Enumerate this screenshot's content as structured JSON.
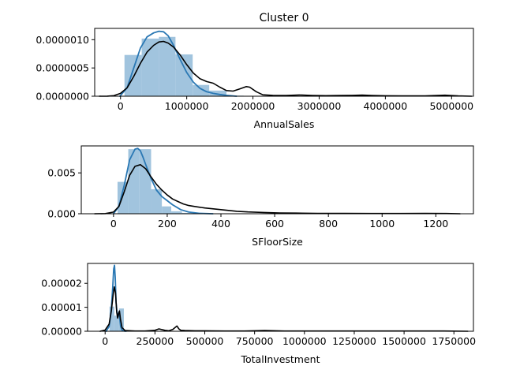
{
  "figure": {
    "title": "Cluster 0"
  },
  "chart_data": [
    {
      "type": "bar",
      "title": "Cluster 0",
      "xlabel": "AnnualSales",
      "ylabel": "",
      "xlim": [
        -390000,
        5330000
      ],
      "ylim": [
        0,
        1.2e-06
      ],
      "xticks": [
        0,
        1000000,
        2000000,
        3000000,
        4000000,
        5000000
      ],
      "xtick_labels": [
        "0",
        "1000000",
        "2000000",
        "3000000",
        "4000000",
        "5000000"
      ],
      "yticks": [
        0,
        5e-07,
        1e-06
      ],
      "ytick_labels": [
        "0.0000000",
        "0.0000005",
        "0.0000010"
      ],
      "histogram": {
        "edges": [
          60000,
          320000,
          580000,
          830000,
          1090000,
          1340000,
          1600000,
          1860000
        ],
        "values": [
          7.3e-07,
          1.02e-06,
          1.05e-06,
          7.4e-07,
          2e-07,
          1e-07,
          1e-08
        ]
      },
      "series": [
        {
          "kind": "blue_kde",
          "x": [
            -10000,
            100000,
            200000,
            300000,
            400000,
            500000,
            580000,
            650000,
            720000,
            800000,
            900000,
            1000000,
            1100000,
            1200000,
            1300000,
            1400000,
            1500000,
            1600000,
            1700000,
            1750000
          ],
          "y": [
            0,
            1.5e-07,
            5e-07,
            8.5e-07,
            1.05e-06,
            1.12e-06,
            1.15e-06,
            1.14e-06,
            1.07e-06,
            9e-07,
            6.5e-07,
            4.2e-07,
            2.5e-07,
            1.4e-07,
            8e-08,
            5e-08,
            3e-08,
            1.5e-08,
            5e-09,
            0
          ]
        },
        {
          "kind": "black_kde",
          "x": [
            -320000,
            -200000,
            -100000,
            0,
            100000,
            200000,
            300000,
            400000,
            500000,
            580000,
            650000,
            720000,
            800000,
            900000,
            1000000,
            1100000,
            1200000,
            1300000,
            1400000,
            1500000,
            1600000,
            1700000,
            1800000,
            1900000,
            1950000,
            2050000,
            2150000,
            2300000,
            2500000,
            2700000,
            2900000,
            3100000,
            3300000,
            3500000,
            3650000,
            3800000,
            4000000,
            4300000,
            4600000,
            4900000,
            5100000,
            5300000
          ],
          "y": [
            0,
            1e-09,
            1e-08,
            5e-08,
            1.5e-07,
            3.5e-07,
            5.8e-07,
            7.8e-07,
            9e-07,
            9.6e-07,
            9.7e-07,
            9.4e-07,
            8.7e-07,
            7.3e-07,
            5.6e-07,
            4.1e-07,
            3.1e-07,
            2.6e-07,
            2.3e-07,
            1.6e-07,
            1e-07,
            9e-08,
            1.3e-07,
            1.7e-07,
            1.6e-07,
            8e-08,
            2.5e-08,
            1.5e-08,
            1.2e-08,
            2.2e-08,
            1.4e-08,
            1e-08,
            1.2e-08,
            1.6e-08,
            2e-08,
            1.2e-08,
            8e-09,
            5e-09,
            5e-09,
            1.8e-08,
            6e-09,
            0
          ]
        }
      ]
    },
    {
      "type": "bar",
      "title": "",
      "xlabel": "SFloorSize",
      "ylabel": "",
      "xlim": [
        -120,
        1340
      ],
      "ylim": [
        0,
        0.0083
      ],
      "xticks": [
        0,
        200,
        400,
        600,
        800,
        1000,
        1200
      ],
      "xtick_labels": [
        "0",
        "200",
        "400",
        "600",
        "800",
        "1000",
        "1200"
      ],
      "yticks": [
        0,
        0.005
      ],
      "ytick_labels": [
        "0.000",
        "0.005"
      ],
      "histogram": {
        "edges": [
          15,
          55,
          95,
          140,
          180,
          215,
          255,
          295
        ],
        "values": [
          0.0039,
          0.0079,
          0.0079,
          0.003,
          0.0009,
          0.0003,
          0.0001
        ]
      },
      "series": [
        {
          "kind": "blue_kde",
          "x": [
            0,
            20,
            40,
            60,
            80,
            90,
            100,
            110,
            120,
            140,
            160,
            180,
            200,
            220,
            250,
            280,
            320,
            370
          ],
          "y": [
            0,
            0.0009,
            0.0035,
            0.0066,
            0.0079,
            0.008,
            0.0077,
            0.0069,
            0.006,
            0.0043,
            0.0029,
            0.0021,
            0.0016,
            0.0011,
            0.0005,
            0.0002,
            5e-05,
            0
          ]
        },
        {
          "kind": "black_kde",
          "x": [
            -70,
            -30,
            0,
            20,
            40,
            60,
            80,
            100,
            120,
            140,
            160,
            180,
            200,
            220,
            240,
            260,
            280,
            300,
            340,
            400,
            460,
            500,
            560,
            620,
            680,
            760,
            860,
            960,
            1060,
            1160,
            1240,
            1290
          ],
          "y": [
            0,
            2e-05,
            0.0002,
            0.0009,
            0.0027,
            0.0047,
            0.0058,
            0.006,
            0.0055,
            0.0045,
            0.0036,
            0.0029,
            0.0023,
            0.0018,
            0.0015,
            0.0012,
            0.001,
            0.0009,
            0.0007,
            0.0005,
            0.0003,
            0.00022,
            0.00015,
            0.0001,
            8e-05,
            5e-05,
            4e-05,
            3e-05,
            3e-05,
            4e-05,
            3e-05,
            0
          ]
        }
      ]
    },
    {
      "type": "bar",
      "title": "",
      "xlabel": "TotalInvestment",
      "ylabel": "",
      "xlim": [
        -88000,
        1848000
      ],
      "ylim": [
        0,
        2.83e-05
      ],
      "xticks": [
        0,
        250000,
        500000,
        750000,
        1000000,
        1250000,
        1500000,
        1750000
      ],
      "xtick_labels": [
        "0",
        "250000",
        "500000",
        "750000",
        "1000000",
        "1250000",
        "1500000",
        "1750000"
      ],
      "yticks": [
        0,
        1e-05,
        2e-05
      ],
      "ytick_labels": [
        "0.00000",
        "0.00001",
        "0.00002"
      ],
      "histogram": {
        "edges": [
          22000,
          46000,
          70000,
          94000
        ],
        "values": [
          1.03e-05,
          6.5e-06,
          9.5e-06
        ]
      },
      "series": [
        {
          "kind": "blue_kde",
          "x": [
            5000,
            20000,
            30000,
            38000,
            43000,
            47000,
            51000,
            55000,
            60000,
            65000,
            69000,
            73000,
            78000,
            85000,
            95000,
            105000
          ],
          "y": [
            0,
            2e-06,
            8e-06,
            1.8e-05,
            2.6e-05,
            2.75e-05,
            2.2e-05,
            1.2e-05,
            7.5e-06,
            6.5e-06,
            8e-06,
            5.5e-06,
            2e-06,
            5e-07,
            1e-07,
            0
          ]
        },
        {
          "kind": "black_kde",
          "x": [
            -25000,
            0,
            20000,
            32000,
            40000,
            46000,
            52000,
            58000,
            63000,
            68000,
            72000,
            77000,
            85000,
            100000,
            150000,
            200000,
            250000,
            270000,
            300000,
            320000,
            340000,
            360000,
            370000,
            380000,
            400000,
            450000,
            500000,
            600000,
            700000,
            800000,
            900000,
            1100000,
            1300000,
            1500000,
            1700000,
            1820000
          ],
          "y": [
            0,
            5e-07,
            3e-06,
            9e-06,
            1.5e-05,
            1.85e-05,
            1.6e-05,
            8e-06,
            5.5e-06,
            7.5e-06,
            8.5e-06,
            5e-06,
            1.5e-06,
            3e-07,
            1e-07,
            1e-07,
            4e-07,
            1e-06,
            4e-07,
            2e-07,
            8e-07,
            2.2e-06,
            1e-06,
            4e-07,
            3e-07,
            2e-07,
            2e-07,
            1e-07,
            1e-07,
            3e-07,
            1e-07,
            1e-07,
            1e-07,
            1e-07,
            1e-07,
            0
          ]
        }
      ]
    }
  ],
  "colors": {
    "hist_fill": "#a1c4de",
    "blue_line": "#2a78b4",
    "black_line": "#000000",
    "axes": "#000000",
    "background": "#ffffff"
  }
}
